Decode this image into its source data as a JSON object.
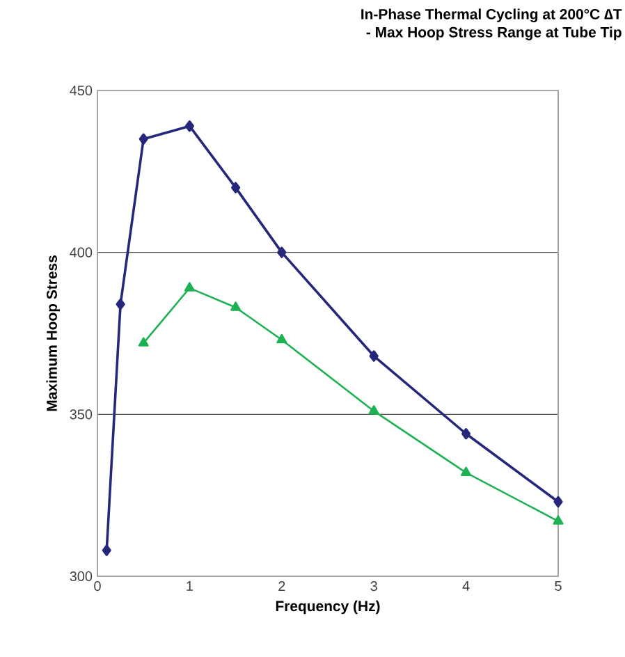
{
  "chart_data": {
    "type": "line",
    "title": "In-Phase Thermal Cycling at 200°C ∆T",
    "subtitle": "- Max Hoop Stress Range at Tube Tip",
    "xlabel": "Frequency (Hz)",
    "ylabel": "Maximum Hoop Stress",
    "series": [
      {
        "color": "#25287a",
        "marker": "diamond",
        "x": [
          0.1,
          0.25,
          0.5,
          1,
          1.5,
          2,
          3,
          4,
          5
        ],
        "values": [
          308,
          384,
          435,
          439,
          420,
          400,
          368,
          344,
          323
        ]
      },
      {
        "color": "#1db154",
        "marker": "triangle",
        "x": [
          0.5,
          1,
          1.5,
          2,
          3,
          4,
          5
        ],
        "values": [
          372,
          389,
          383,
          373,
          351,
          332,
          317
        ]
      }
    ],
    "xlim": [
      0,
      5
    ],
    "ylim": [
      300,
      450
    ],
    "xticks": [
      0,
      1,
      2,
      3,
      4,
      5
    ],
    "yticks": [
      300,
      350,
      400,
      450
    ],
    "grid": "y"
  }
}
